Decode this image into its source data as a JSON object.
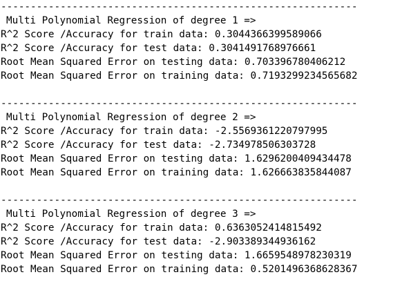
{
  "output": {
    "blocks": [
      {
        "separator": "------------------------------------------------------------",
        "header": "Multi Polynomial Regression of degree 1 =>",
        "lines": [
          "R^2 Score /Accuracy for train data: 0.3044366399589066",
          "R^2 Score /Accuracy for test data: 0.3041491768976661",
          "Root Mean Squared Error on testing data: 0.703396780406212",
          "Root Mean Squared Error on training data: 0.7193299234565682"
        ]
      },
      {
        "separator": "------------------------------------------------------------",
        "header": "Multi Polynomial Regression of degree 2 =>",
        "lines": [
          "R^2 Score /Accuracy for train data: -2.5569361220797995",
          "R^2 Score /Accuracy for test data: -2.734978506303728",
          "Root Mean Squared Error on testing data: 1.6296200409434478",
          "Root Mean Squared Error on training data: 1.626663835844087"
        ]
      },
      {
        "separator": "------------------------------------------------------------",
        "header": "Multi Polynomial Regression of degree 3 =>",
        "lines": [
          "R^2 Score /Accuracy for train data: 0.6363052414815492",
          "R^2 Score /Accuracy for test data: -2.903389344936162",
          "Root Mean Squared Error on testing data: 1.6659548978230319",
          "Root Mean Squared Error on training data: 0.5201496368628367"
        ]
      }
    ]
  }
}
